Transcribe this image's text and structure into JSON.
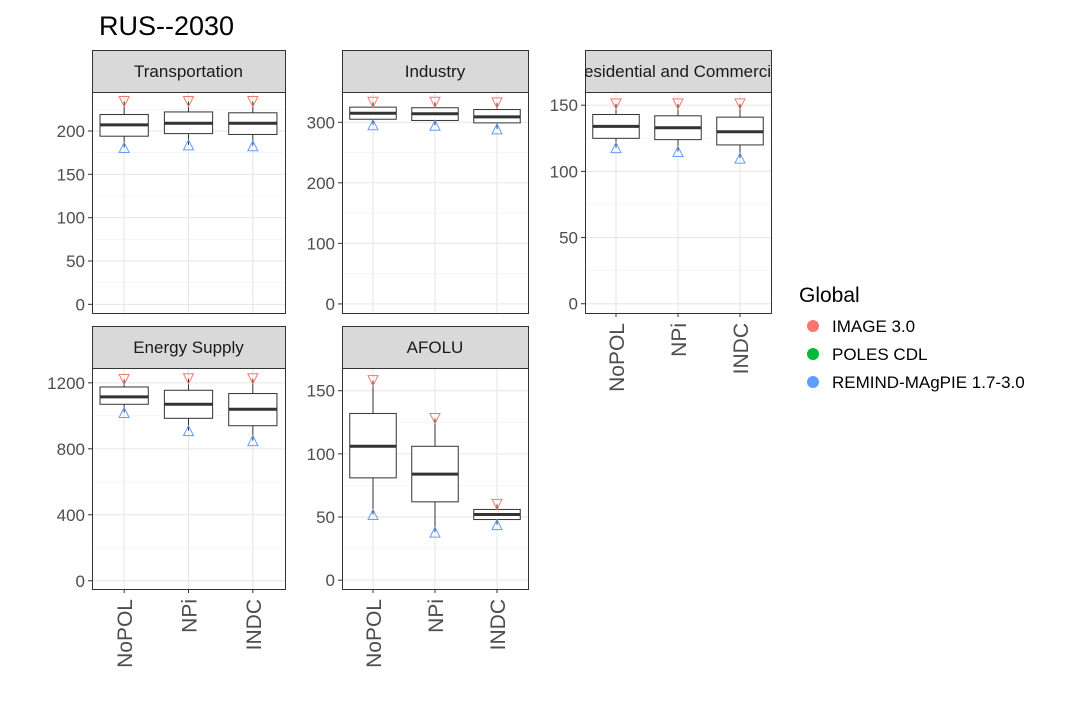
{
  "chart_data": {
    "type": "box",
    "title": "RUS--2030",
    "categories": [
      "NoPOL",
      "NPi",
      "INDC"
    ],
    "legend": {
      "title": "Global",
      "position": "right",
      "entries": [
        {
          "label": "IMAGE 3.0",
          "color": "#F8766D"
        },
        {
          "label": "POLES CDL",
          "color": "#00BA38"
        },
        {
          "label": "REMIND-MAgPIE 1.7-3.0",
          "color": "#619CFF"
        }
      ]
    },
    "panels": [
      {
        "name": "Transportation",
        "ylim": [
          -10,
          245
        ],
        "yticks": [
          0,
          50,
          100,
          150,
          200
        ],
        "boxes": [
          {
            "category": "NoPOL",
            "low": 181,
            "q1": 194,
            "median": 207,
            "q3": 219,
            "high": 234
          },
          {
            "category": "NPi",
            "low": 184,
            "q1": 197,
            "median": 209,
            "q3": 222,
            "high": 234
          },
          {
            "category": "INDC",
            "low": 183,
            "q1": 196,
            "median": 209,
            "q3": 221,
            "high": 234
          }
        ]
      },
      {
        "name": "Industry",
        "ylim": [
          -15,
          350
        ],
        "yticks": [
          0,
          100,
          200,
          300
        ],
        "boxes": [
          {
            "category": "NoPOL",
            "low": 296,
            "q1": 305,
            "median": 315,
            "q3": 325,
            "high": 333
          },
          {
            "category": "NPi",
            "low": 295,
            "q1": 303,
            "median": 314,
            "q3": 324,
            "high": 333
          },
          {
            "category": "INDC",
            "low": 289,
            "q1": 299,
            "median": 309,
            "q3": 321,
            "high": 332
          }
        ]
      },
      {
        "name": "Residential and Commercial",
        "ylim": [
          -7,
          160
        ],
        "yticks": [
          0,
          50,
          100,
          150
        ],
        "boxes": [
          {
            "category": "NoPOL",
            "low": 118,
            "q1": 125,
            "median": 134,
            "q3": 143,
            "high": 151
          },
          {
            "category": "NPi",
            "low": 115,
            "q1": 124,
            "median": 133,
            "q3": 142,
            "high": 151
          },
          {
            "category": "INDC",
            "low": 110,
            "q1": 120,
            "median": 130,
            "q3": 141,
            "high": 151
          }
        ]
      },
      {
        "name": "Energy Supply",
        "ylim": [
          -50,
          1290
        ],
        "yticks": [
          0,
          400,
          800,
          1200
        ],
        "boxes": [
          {
            "category": "NoPOL",
            "low": 1020,
            "q1": 1070,
            "median": 1115,
            "q3": 1175,
            "high": 1220
          },
          {
            "category": "NPi",
            "low": 910,
            "q1": 985,
            "median": 1070,
            "q3": 1155,
            "high": 1225
          },
          {
            "category": "INDC",
            "low": 850,
            "q1": 940,
            "median": 1040,
            "q3": 1135,
            "high": 1225
          }
        ]
      },
      {
        "name": "AFOLU",
        "ylim": [
          -7,
          168
        ],
        "yticks": [
          0,
          50,
          100,
          150
        ],
        "boxes": [
          {
            "category": "NoPOL",
            "low": 52,
            "q1": 81,
            "median": 106,
            "q3": 132,
            "high": 158
          },
          {
            "category": "NPi",
            "low": 38,
            "q1": 62,
            "median": 84,
            "q3": 106,
            "high": 128
          },
          {
            "category": "INDC",
            "low": 44,
            "q1": 48,
            "median": 52,
            "q3": 56,
            "high": 60
          }
        ]
      }
    ]
  }
}
